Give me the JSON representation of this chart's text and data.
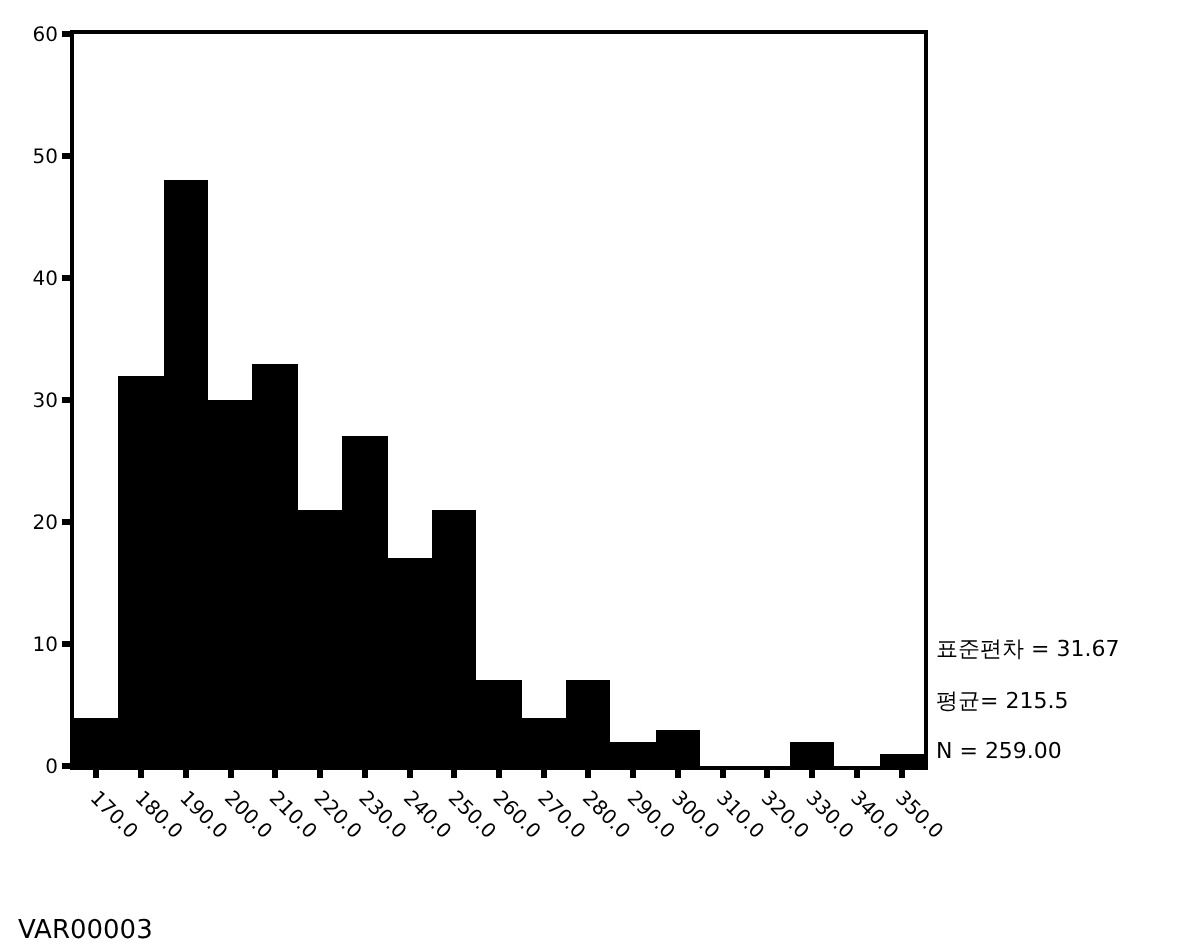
{
  "chart_data": {
    "type": "histogram",
    "xlabel": "VAR00003",
    "bins": [
      165,
      175,
      185,
      195,
      205,
      215,
      225,
      235,
      245,
      255,
      265,
      275,
      285,
      295,
      305,
      315,
      325,
      335,
      345,
      355
    ],
    "values": [
      4,
      32,
      48,
      30,
      33,
      21,
      27,
      17,
      21,
      7,
      4,
      7,
      2,
      3,
      0,
      0,
      2,
      0,
      1
    ],
    "color": "#000000",
    "xlim": [
      165,
      355
    ],
    "xticks": [
      {
        "value": 170,
        "label": "170.0"
      },
      {
        "value": 180,
        "label": "180.0"
      },
      {
        "value": 190,
        "label": "190.0"
      },
      {
        "value": 200,
        "label": "200.0"
      },
      {
        "value": 210,
        "label": "210.0"
      },
      {
        "value": 220,
        "label": "220.0"
      },
      {
        "value": 230,
        "label": "230.0"
      },
      {
        "value": 240,
        "label": "240.0"
      },
      {
        "value": 250,
        "label": "250.0"
      },
      {
        "value": 260,
        "label": "260.0"
      },
      {
        "value": 270,
        "label": "270.0"
      },
      {
        "value": 280,
        "label": "280.0"
      },
      {
        "value": 290,
        "label": "290.0"
      },
      {
        "value": 300,
        "label": "300.0"
      },
      {
        "value": 310,
        "label": "310.0"
      },
      {
        "value": 320,
        "label": "320.0"
      },
      {
        "value": 330,
        "label": "330.0"
      },
      {
        "value": 340,
        "label": "340.0"
      },
      {
        "value": 350,
        "label": "350.0"
      }
    ],
    "ylim": [
      0,
      60
    ],
    "yticks": [
      0,
      10,
      20,
      30,
      40,
      50,
      60
    ],
    "annotations": [
      "표준편차 = 31.67",
      "평균= 215.5",
      "N = 259.00"
    ]
  }
}
